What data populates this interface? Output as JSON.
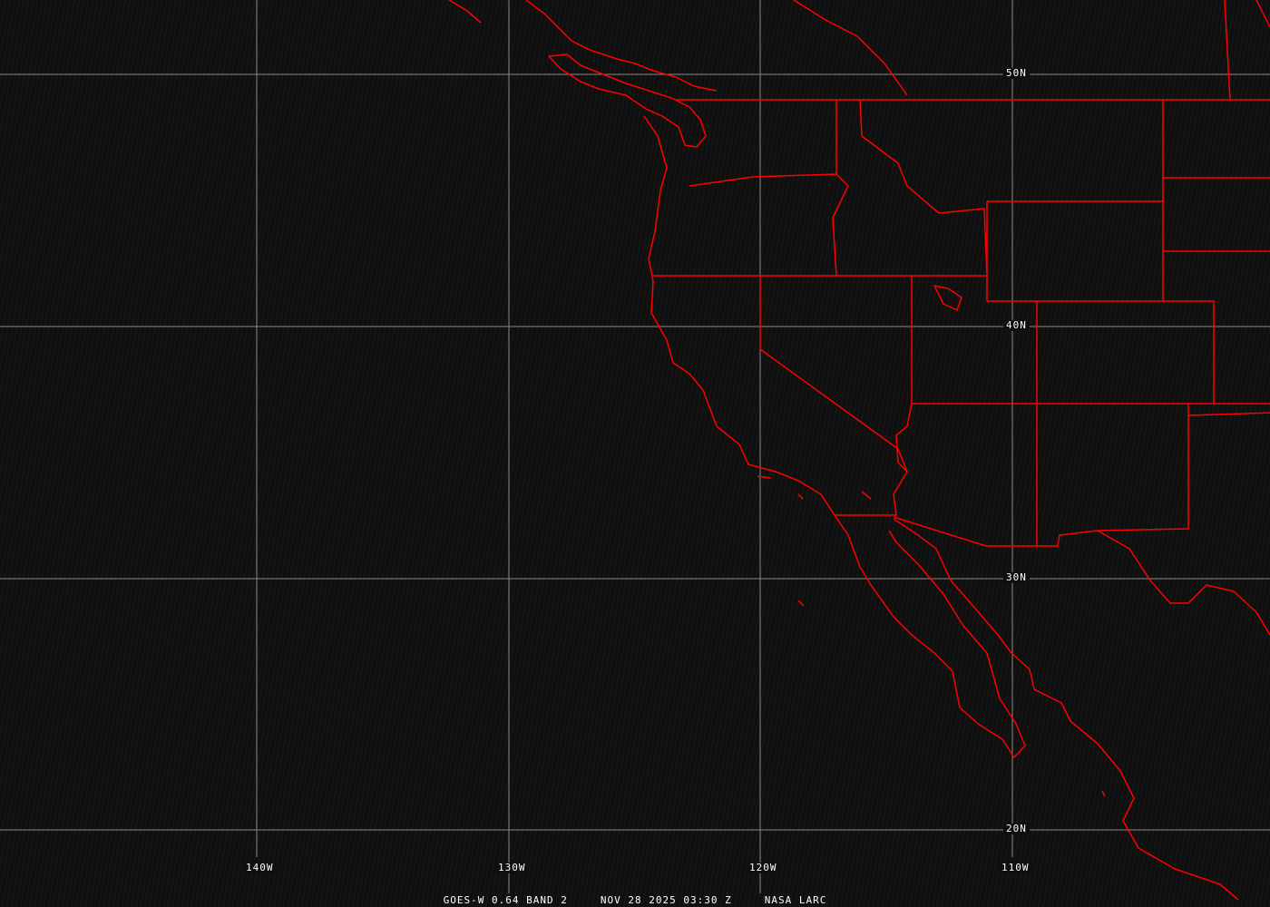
{
  "map": {
    "grid_color": "#8a8a8a",
    "boundary_color": "#ff0000",
    "latitude_labels": [
      "50N",
      "40N",
      "30N",
      "20N"
    ],
    "longitude_labels": [
      "140W",
      "130W",
      "120W",
      "110W"
    ]
  },
  "caption": {
    "satellite": "GOES-W 0.64 BAND 2",
    "datetime": "NOV 28 2025 03:30 Z",
    "source": "NASA LARC"
  }
}
